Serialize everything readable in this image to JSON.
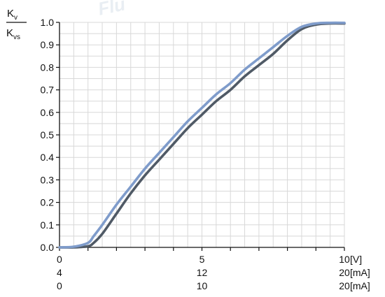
{
  "watermark": "Flu",
  "chart_data": {
    "type": "line",
    "ylabel": {
      "numerator": "K",
      "numerator_sub": "v",
      "denominator": "K",
      "denominator_sub": "vs"
    },
    "ylim": [
      0,
      1.0
    ],
    "yticks": [
      0.0,
      0.1,
      0.2,
      0.3,
      0.4,
      0.5,
      0.6,
      0.7,
      0.8,
      0.9,
      1.0
    ],
    "xlim": [
      0,
      10
    ],
    "x_scales": [
      {
        "ticks": [
          "0",
          "5",
          "10"
        ],
        "unit": "[V]"
      },
      {
        "ticks": [
          "4",
          "12",
          "20"
        ],
        "unit": "[mA]"
      },
      {
        "ticks": [
          "0",
          "10",
          "20"
        ],
        "unit": "[mA]"
      }
    ],
    "grid": true,
    "series": [
      {
        "color": "#7f9ccb",
        "x": [
          0,
          0.5,
          1.0,
          1.2,
          1.5,
          2.0,
          2.5,
          3.0,
          3.5,
          4.0,
          4.5,
          5.0,
          5.5,
          6.0,
          6.5,
          7.0,
          7.5,
          8.0,
          8.5,
          9.0,
          9.5,
          10.0
        ],
        "y": [
          0.0,
          0.003,
          0.02,
          0.05,
          0.1,
          0.19,
          0.27,
          0.35,
          0.42,
          0.49,
          0.56,
          0.62,
          0.68,
          0.73,
          0.79,
          0.84,
          0.89,
          0.94,
          0.98,
          0.995,
          0.998,
          0.998
        ]
      },
      {
        "color": "#505a66",
        "x": [
          0,
          0.5,
          1.0,
          1.2,
          1.5,
          2.0,
          2.5,
          3.0,
          3.5,
          4.0,
          4.5,
          5.0,
          5.5,
          6.0,
          6.5,
          7.0,
          7.5,
          8.0,
          8.5,
          9.0,
          9.5,
          10.0
        ],
        "y": [
          0.0,
          0.0,
          0.005,
          0.02,
          0.06,
          0.15,
          0.24,
          0.32,
          0.39,
          0.46,
          0.53,
          0.59,
          0.65,
          0.7,
          0.76,
          0.81,
          0.86,
          0.92,
          0.97,
          0.99,
          0.995,
          0.995
        ]
      }
    ]
  }
}
